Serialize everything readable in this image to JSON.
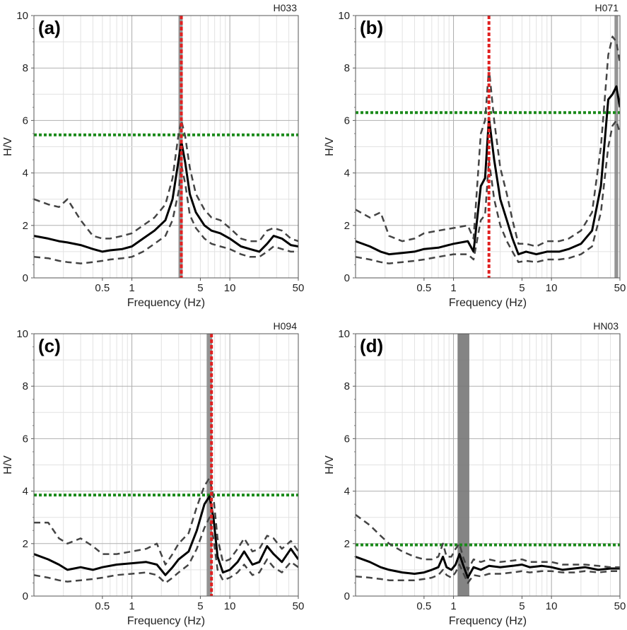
{
  "chart_data": [
    {
      "type": "line",
      "panel_label": "(a)",
      "station": "H033",
      "xlabel": "Frequency (Hz)",
      "ylabel": "H/V",
      "xscale": "log",
      "xlim": [
        0.1,
        50
      ],
      "ylim": [
        0,
        10
      ],
      "x_ticks": [
        "0.5",
        "1",
        "5",
        "10",
        "50"
      ],
      "y_ticks": [
        "0",
        "2",
        "4",
        "6",
        "8",
        "10"
      ],
      "grid": true,
      "peak_frequency": 3.2,
      "peak_band": [
        3.0,
        3.3
      ],
      "threshold_hv": 5.45,
      "colors": {
        "mean": "#000000",
        "std": "#444444",
        "peak": "#e02020",
        "threshold": "#1a8a1a",
        "band": "#888888"
      },
      "x": [
        0.1,
        0.14,
        0.18,
        0.22,
        0.3,
        0.4,
        0.5,
        0.6,
        0.8,
        1.0,
        1.3,
        1.7,
        2.2,
        2.6,
        3.0,
        3.2,
        3.5,
        3.9,
        4.5,
        5.5,
        6.5,
        8,
        10,
        13,
        16,
        20,
        24,
        28,
        34,
        42,
        50
      ],
      "series": [
        {
          "role": "mean",
          "values": [
            1.6,
            1.5,
            1.4,
            1.35,
            1.25,
            1.1,
            1.0,
            1.05,
            1.1,
            1.2,
            1.5,
            1.8,
            2.2,
            3.0,
            4.5,
            5.2,
            4.4,
            3.2,
            2.5,
            2.0,
            1.8,
            1.7,
            1.5,
            1.2,
            1.1,
            1.0,
            1.3,
            1.6,
            1.5,
            1.25,
            1.2
          ]
        },
        {
          "role": "mean+std",
          "values": [
            3.0,
            2.8,
            2.7,
            3.0,
            2.2,
            1.6,
            1.5,
            1.5,
            1.6,
            1.7,
            2.0,
            2.3,
            2.8,
            3.8,
            5.5,
            6.0,
            5.4,
            4.2,
            3.2,
            2.6,
            2.3,
            2.2,
            1.9,
            1.5,
            1.4,
            1.4,
            1.8,
            1.9,
            1.8,
            1.5,
            1.4
          ]
        },
        {
          "role": "mean-std",
          "values": [
            0.8,
            0.75,
            0.65,
            0.6,
            0.55,
            0.6,
            0.65,
            0.7,
            0.75,
            0.8,
            1.0,
            1.3,
            1.6,
            2.2,
            3.3,
            4.3,
            3.6,
            2.4,
            1.9,
            1.5,
            1.3,
            1.2,
            1.1,
            0.9,
            0.8,
            0.8,
            1.0,
            1.2,
            1.1,
            1.0,
            1.0
          ]
        }
      ]
    },
    {
      "type": "line",
      "panel_label": "(b)",
      "station": "H071",
      "xlabel": "Frequency (Hz)",
      "ylabel": "H/V",
      "xscale": "log",
      "xlim": [
        0.1,
        50
      ],
      "ylim": [
        0,
        10
      ],
      "x_ticks": [
        "0.5",
        "1",
        "5",
        "10",
        "50"
      ],
      "y_ticks": [
        "0",
        "2",
        "4",
        "6",
        "8",
        "10"
      ],
      "grid": true,
      "peak_frequency": 2.3,
      "peak_band": [
        44,
        48
      ],
      "threshold_hv": 6.3,
      "colors": {
        "mean": "#000000",
        "std": "#444444",
        "peak": "#e02020",
        "threshold": "#1a8a1a",
        "band": "#888888"
      },
      "x": [
        0.1,
        0.14,
        0.18,
        0.22,
        0.3,
        0.4,
        0.5,
        0.7,
        1.0,
        1.4,
        1.6,
        1.9,
        2.1,
        2.3,
        2.6,
        3.0,
        3.5,
        4.0,
        4.6,
        5.5,
        7,
        9,
        12,
        15,
        20,
        26,
        32,
        38,
        42,
        46,
        50
      ],
      "series": [
        {
          "role": "mean",
          "values": [
            1.4,
            1.2,
            1.0,
            0.9,
            0.95,
            1.0,
            1.1,
            1.15,
            1.3,
            1.4,
            1.0,
            3.5,
            3.8,
            6.1,
            4.5,
            3.0,
            2.2,
            1.5,
            0.9,
            1.0,
            0.9,
            1.0,
            1.0,
            1.1,
            1.3,
            1.8,
            3.5,
            6.8,
            7.0,
            7.3,
            6.5
          ]
        },
        {
          "role": "mean+std",
          "values": [
            2.6,
            2.3,
            2.5,
            1.6,
            1.4,
            1.5,
            1.7,
            1.8,
            1.9,
            2.0,
            1.5,
            5.5,
            6.0,
            8.0,
            6.0,
            4.2,
            3.2,
            2.2,
            1.3,
            1.3,
            1.2,
            1.4,
            1.4,
            1.5,
            1.8,
            2.5,
            5.0,
            8.5,
            9.2,
            9.0,
            8.2
          ]
        },
        {
          "role": "mean-std",
          "values": [
            0.8,
            0.7,
            0.6,
            0.55,
            0.6,
            0.65,
            0.7,
            0.8,
            0.9,
            0.9,
            0.7,
            2.2,
            2.4,
            4.5,
            3.0,
            2.0,
            1.4,
            1.0,
            0.6,
            0.65,
            0.6,
            0.7,
            0.7,
            0.75,
            0.9,
            1.2,
            2.5,
            5.0,
            5.8,
            6.0,
            5.5
          ]
        }
      ]
    },
    {
      "type": "line",
      "panel_label": "(c)",
      "station": "H094",
      "xlabel": "Frequency (Hz)",
      "ylabel": "H/V",
      "xscale": "log",
      "xlim": [
        0.1,
        50
      ],
      "ylim": [
        0,
        10
      ],
      "x_ticks": [
        "0.5",
        "1",
        "5",
        "10",
        "50"
      ],
      "y_ticks": [
        "0",
        "2",
        "4",
        "6",
        "8",
        "10"
      ],
      "grid": true,
      "peak_frequency": 6.5,
      "peak_band": [
        5.8,
        6.6
      ],
      "threshold_hv": 3.85,
      "colors": {
        "mean": "#000000",
        "std": "#444444",
        "peak": "#e02020",
        "threshold": "#1a8a1a",
        "band": "#888888"
      },
      "x": [
        0.1,
        0.14,
        0.18,
        0.22,
        0.3,
        0.4,
        0.5,
        0.7,
        1.0,
        1.4,
        1.8,
        2.2,
        2.6,
        3.0,
        3.8,
        4.6,
        5.5,
        6.2,
        6.8,
        7.5,
        8.5,
        10,
        12,
        14,
        17,
        20,
        24,
        28,
        34,
        42,
        50
      ],
      "series": [
        {
          "role": "mean",
          "values": [
            1.6,
            1.4,
            1.2,
            1.0,
            1.1,
            1.0,
            1.1,
            1.2,
            1.25,
            1.3,
            1.2,
            0.8,
            1.1,
            1.4,
            1.7,
            2.5,
            3.5,
            3.8,
            3.0,
            1.5,
            0.9,
            1.0,
            1.3,
            1.7,
            1.2,
            1.3,
            1.9,
            1.6,
            1.3,
            1.8,
            1.4
          ]
        },
        {
          "role": "mean+std",
          "values": [
            2.8,
            2.8,
            2.2,
            2.0,
            2.2,
            1.9,
            1.6,
            1.6,
            1.7,
            1.8,
            2.0,
            1.2,
            1.6,
            2.0,
            2.4,
            3.4,
            4.2,
            4.5,
            3.8,
            2.2,
            1.3,
            1.4,
            1.8,
            2.2,
            1.7,
            1.8,
            2.3,
            2.2,
            1.8,
            2.1,
            1.7
          ]
        },
        {
          "role": "mean-std",
          "values": [
            0.8,
            0.7,
            0.6,
            0.55,
            0.6,
            0.65,
            0.7,
            0.8,
            0.85,
            0.9,
            0.8,
            0.5,
            0.7,
            0.9,
            1.2,
            1.8,
            2.6,
            3.0,
            2.2,
            1.0,
            0.6,
            0.7,
            0.9,
            1.2,
            0.8,
            0.9,
            1.4,
            1.1,
            0.9,
            1.3,
            1.1
          ]
        }
      ]
    },
    {
      "type": "line",
      "panel_label": "(d)",
      "station": "HN03",
      "xlabel": "Frequency (Hz)",
      "ylabel": "H/V",
      "xscale": "log",
      "xlim": [
        0.1,
        50
      ],
      "ylim": [
        0,
        10
      ],
      "x_ticks": [
        "0.5",
        "1",
        "5",
        "10",
        "50"
      ],
      "y_ticks": [
        "0",
        "2",
        "4",
        "6",
        "8",
        "10"
      ],
      "grid": true,
      "peak_band": [
        1.1,
        1.45
      ],
      "threshold_hv": 1.95,
      "colors": {
        "mean": "#000000",
        "std": "#444444",
        "peak": "#e02020",
        "threshold": "#1a8a1a",
        "band": "#777777"
      },
      "x": [
        0.1,
        0.14,
        0.18,
        0.22,
        0.3,
        0.4,
        0.5,
        0.6,
        0.7,
        0.78,
        0.85,
        0.95,
        1.05,
        1.15,
        1.25,
        1.4,
        1.6,
        1.9,
        2.3,
        3.0,
        4.0,
        5.0,
        6.0,
        8.0,
        10,
        13,
        17,
        22,
        30,
        40,
        50
      ],
      "series": [
        {
          "role": "mean",
          "values": [
            1.5,
            1.3,
            1.1,
            1.0,
            0.9,
            0.85,
            0.9,
            1.0,
            1.1,
            1.5,
            1.1,
            1.0,
            1.2,
            1.6,
            1.2,
            0.7,
            1.1,
            1.0,
            1.15,
            1.1,
            1.15,
            1.2,
            1.1,
            1.15,
            1.1,
            1.0,
            1.05,
            1.1,
            1.0,
            1.05,
            1.05
          ]
        },
        {
          "role": "mean+std",
          "values": [
            3.1,
            2.7,
            2.3,
            2.0,
            1.7,
            1.5,
            1.4,
            1.4,
            1.5,
            2.0,
            1.5,
            1.5,
            1.8,
            2.0,
            1.5,
            1.0,
            1.4,
            1.3,
            1.4,
            1.3,
            1.35,
            1.4,
            1.3,
            1.3,
            1.3,
            1.2,
            1.2,
            1.2,
            1.15,
            1.1,
            1.1
          ]
        },
        {
          "role": "mean-std",
          "values": [
            0.75,
            0.7,
            0.65,
            0.6,
            0.6,
            0.6,
            0.65,
            0.7,
            0.8,
            1.0,
            0.8,
            0.7,
            0.9,
            1.2,
            0.9,
            0.5,
            0.8,
            0.75,
            0.85,
            0.85,
            0.9,
            0.95,
            0.9,
            0.95,
            0.95,
            0.9,
            0.9,
            0.95,
            0.9,
            0.95,
            0.95
          ]
        }
      ]
    }
  ]
}
